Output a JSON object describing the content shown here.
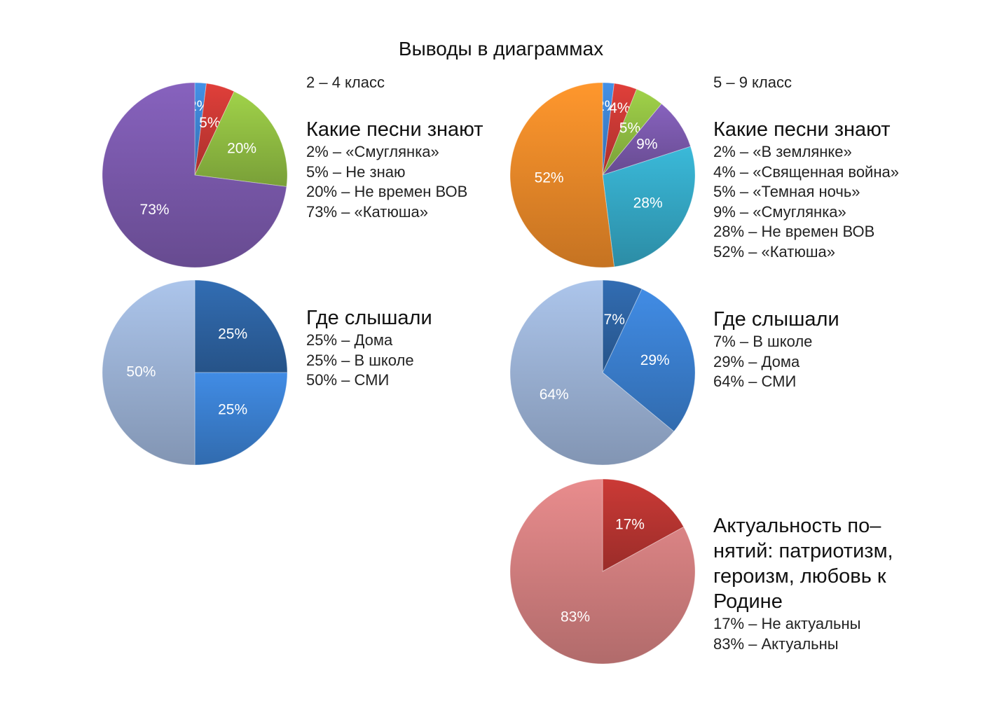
{
  "title": "Выводы в диаграммах",
  "groups": [
    {
      "label": "2 – 4 класс"
    },
    {
      "label": "5 – 9 класс"
    }
  ],
  "chart_data": [
    {
      "type": "pie",
      "group": "2 – 4 класс",
      "title": "Какие песни знают",
      "categories": [
        "Смуглянка",
        "Не знаю",
        "Не времен ВОВ",
        "Катюша"
      ],
      "values": [
        2,
        5,
        20,
        73
      ],
      "slice_labels": [
        "2%",
        "5%",
        "20%",
        "73%"
      ],
      "colors": [
        "#3f86d6",
        "#cf3a36",
        "#94c244",
        "#7d5bb0"
      ],
      "legend": [
        "2% – «Смуглянка»",
        "5% – Не знаю",
        "20% – Не времен ВОВ",
        "73% – «Катюша»"
      ],
      "legend_position": "right"
    },
    {
      "type": "pie",
      "group": "5 – 9 класс",
      "title": "Какие песни знают",
      "categories": [
        "В землянке",
        "Священная война",
        "Темная ночь",
        "Смуглянка",
        "Не времен ВОВ",
        "Катюша"
      ],
      "values": [
        2,
        4,
        5,
        9,
        28,
        52
      ],
      "slice_labels": [
        "2%",
        "4%",
        "5%",
        "9%",
        "28%",
        "52%"
      ],
      "colors": [
        "#3f86d6",
        "#cf3a36",
        "#94c244",
        "#7d5bb0",
        "#36abc9",
        "#f08c2a"
      ],
      "legend": [
        "2% – «В землянке»",
        "4% – «Священная война»",
        "5% – «Темная ночь»",
        "9% – «Смуглянка»",
        "28% – Не времен ВОВ",
        "52% – «Катюша»"
      ],
      "legend_position": "right"
    },
    {
      "type": "pie",
      "group": "2 – 4 класс",
      "title": "Где слышали",
      "categories": [
        "Дома",
        "В школе",
        "СМИ"
      ],
      "values": [
        25,
        25,
        50
      ],
      "slice_labels": [
        "25%",
        "25%",
        "50%"
      ],
      "colors": [
        "#2e65a6",
        "#3c82d4",
        "#9fb6da"
      ],
      "legend": [
        "25% – Дома",
        "25% – В школе",
        "50% – СМИ"
      ],
      "legend_position": "right"
    },
    {
      "type": "pie",
      "group": "5 – 9 класс",
      "title": "Где слышали",
      "categories": [
        "В школе",
        "Дома",
        "СМИ"
      ],
      "values": [
        7,
        29,
        64
      ],
      "slice_labels": [
        "7%",
        "29%",
        "64%"
      ],
      "colors": [
        "#2e65a6",
        "#3c82d4",
        "#9fb6da"
      ],
      "legend": [
        "7% – В школе",
        "29% – Дома",
        "64% – СМИ"
      ],
      "legend_position": "right"
    },
    {
      "type": "pie",
      "group": "5 – 9 класс",
      "title_lines": [
        "Актуальность по–",
        "нятий: патриотизм,",
        "героизм, любовь к",
        "Родине"
      ],
      "categories": [
        "Не актуальны",
        "Актуальны"
      ],
      "values": [
        17,
        83
      ],
      "slice_labels": [
        "17%",
        "83%"
      ],
      "colors": [
        "#bc3632",
        "#d88283"
      ],
      "legend": [
        "17% – Не актуальны",
        "83% – Актуальны"
      ],
      "legend_position": "right"
    }
  ]
}
